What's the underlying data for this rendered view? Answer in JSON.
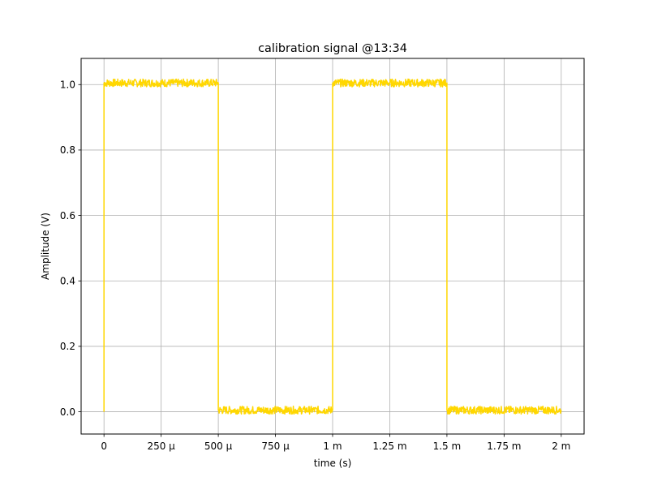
{
  "chart_data": {
    "type": "line",
    "title": "calibration signal @13:34",
    "xlabel": "time (s)",
    "ylabel": "Amplitude (V)",
    "xlim": [
      -0.0001,
      0.0021
    ],
    "ylim": [
      -0.068,
      1.08
    ],
    "grid": true,
    "x_ticks": [
      {
        "value": 0,
        "label": "0"
      },
      {
        "value": 0.00025,
        "label": "250 µ"
      },
      {
        "value": 0.0005,
        "label": "500 µ"
      },
      {
        "value": 0.00075,
        "label": "750 µ"
      },
      {
        "value": 0.001,
        "label": "1 m"
      },
      {
        "value": 0.00125,
        "label": "1.25 m"
      },
      {
        "value": 0.0015,
        "label": "1.5 m"
      },
      {
        "value": 0.00175,
        "label": "1.75 m"
      },
      {
        "value": 0.002,
        "label": "2 m"
      }
    ],
    "y_ticks": [
      {
        "value": 0.0,
        "label": "0.0"
      },
      {
        "value": 0.2,
        "label": "0.2"
      },
      {
        "value": 0.4,
        "label": "0.4"
      },
      {
        "value": 0.6,
        "label": "0.6"
      },
      {
        "value": 0.8,
        "label": "0.8"
      },
      {
        "value": 1.0,
        "label": "1.0"
      }
    ],
    "series": [
      {
        "color": "#ffd700",
        "x": [
          0,
          0,
          0.0005,
          0.0005,
          0.001,
          0.001,
          0.0015,
          0.0015,
          0.002
        ],
        "y": [
          0.0,
          1.005,
          1.005,
          0.005,
          0.005,
          1.005,
          1.005,
          0.005,
          0.005
        ],
        "noise_amplitude": 0.012
      }
    ]
  }
}
